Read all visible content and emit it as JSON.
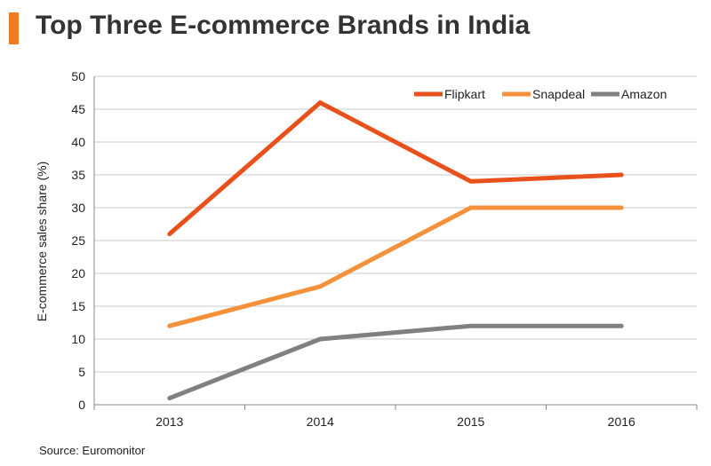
{
  "header": {
    "title": "Top Three E-commerce Brands in India"
  },
  "footer": {
    "source": "Source: Euromonitor"
  },
  "colors": {
    "accent": "#f07c22"
  },
  "chart_data": {
    "type": "line",
    "title": "Top Three E-commerce Brands in India",
    "xlabel": "",
    "ylabel": "E-commerce sales share (%)",
    "x": [
      "2013",
      "2014",
      "2015",
      "2016"
    ],
    "ylim": [
      0,
      50
    ],
    "yticks": [
      0,
      5,
      10,
      15,
      20,
      25,
      30,
      35,
      40,
      45,
      50
    ],
    "grid": true,
    "legend_position": "top-right",
    "series": [
      {
        "name": "Flipkart",
        "color": "#e8501c",
        "values": [
          26,
          46,
          34,
          35
        ]
      },
      {
        "name": "Snapdeal",
        "color": "#f4923c",
        "values": [
          12,
          18,
          30,
          30
        ]
      },
      {
        "name": "Amazon",
        "color": "#808080",
        "values": [
          1,
          10,
          12,
          12
        ]
      }
    ]
  }
}
